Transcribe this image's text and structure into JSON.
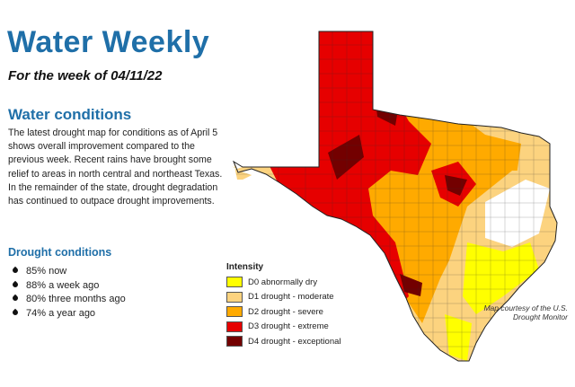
{
  "header": {
    "title": "Water Weekly",
    "week": "For the week of 04/11/22"
  },
  "water_conditions": {
    "heading": "Water conditions",
    "paragraphs": [
      "The latest drought map for conditions as of April 5 shows overall improvement compared to the previous week. Recent rains have brought some relief to areas in north central and northeast Texas. In the remainder of the state, drought degradation has continued to outpace drought improvements."
    ]
  },
  "drought_conditions": {
    "heading": "Drought conditions",
    "items": [
      "85% now",
      "88% a week ago",
      "80% three months ago",
      "74% a year ago"
    ]
  },
  "map": {
    "legend_title": "Intensity",
    "legend": [
      {
        "label": "D0  abnormally dry",
        "color": "#ffff00"
      },
      {
        "label": "D1  drought - moderate",
        "color": "#fcd37f"
      },
      {
        "label": "D2  drought - severe",
        "color": "#ffaa00"
      },
      {
        "label": "D3  drought - extreme",
        "color": "#e60000"
      },
      {
        "label": "D4  drought - exceptional",
        "color": "#730000"
      }
    ],
    "credit": "Map courtesy of the U.S. Drought Monitor"
  }
}
